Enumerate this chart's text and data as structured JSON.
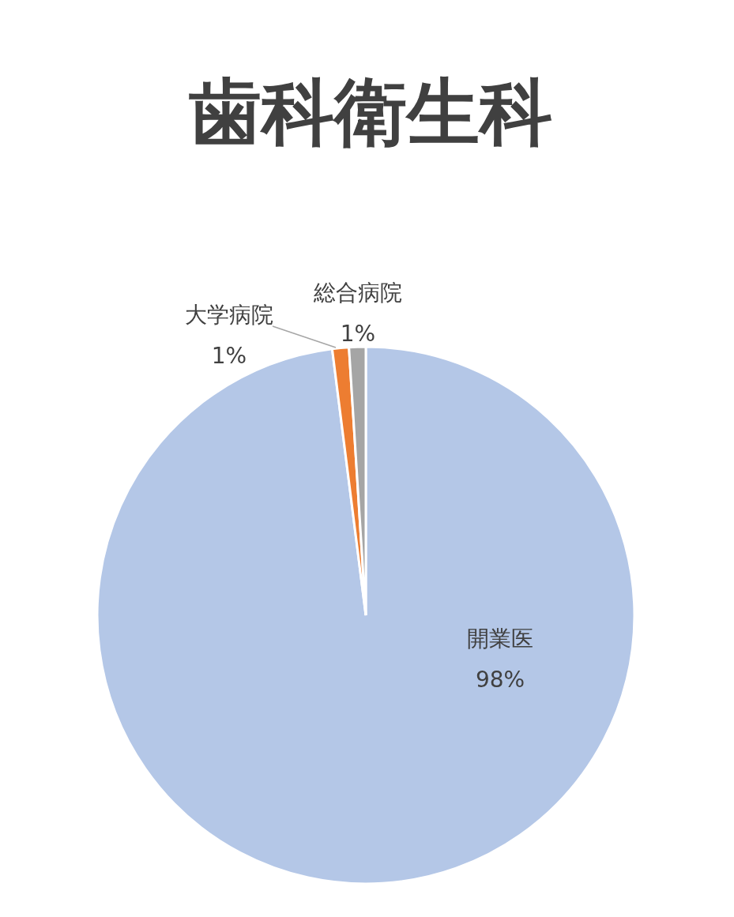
{
  "chart_data": {
    "type": "pie",
    "title": "歯科衛生科",
    "categories": [
      "開業医",
      "大学病院",
      "総合病院"
    ],
    "values": [
      98,
      1,
      1
    ],
    "colors": [
      "#b4c7e7",
      "#ed7d31",
      "#a5a5a5"
    ],
    "value_labels": [
      "98%",
      "1%",
      "1%"
    ]
  }
}
